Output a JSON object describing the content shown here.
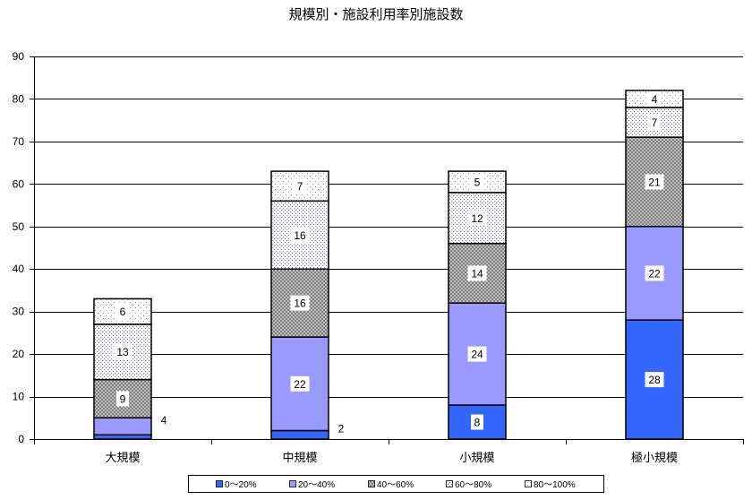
{
  "chart_data": {
    "type": "bar",
    "stacked": true,
    "title": "規模別・施設利用率別施設数",
    "xlabel": "",
    "ylabel": "",
    "categories": [
      "大規模",
      "中規模",
      "小規模",
      "極小規模"
    ],
    "ylim": [
      0,
      90
    ],
    "yticks": [
      0,
      10,
      20,
      30,
      40,
      50,
      60,
      70,
      80,
      90
    ],
    "grid": true,
    "legend": "bottom",
    "data_labels": true,
    "series": [
      {
        "name": "0～20%",
        "values": [
          1,
          2,
          8,
          28
        ],
        "color": "#3366ff",
        "fill": "solid",
        "label_placement": [
          "hidden",
          "outside",
          "inside",
          "inside"
        ]
      },
      {
        "name": "20～40%",
        "values": [
          4,
          22,
          24,
          22
        ],
        "color": "#9999ff",
        "fill": "solid",
        "label_placement": [
          "outside",
          "inside",
          "inside",
          "inside"
        ]
      },
      {
        "name": "40～60%",
        "values": [
          9,
          16,
          14,
          21
        ],
        "color": "#6e6e6e",
        "fill": "crosshatch"
      },
      {
        "name": "60～80%",
        "values": [
          13,
          16,
          12,
          7
        ],
        "color": "#6b6bb0",
        "fill": "dense-dots"
      },
      {
        "name": "80～100%",
        "values": [
          6,
          7,
          5,
          4
        ],
        "color": "#8a8a8a",
        "fill": "sparse-dots"
      }
    ]
  }
}
